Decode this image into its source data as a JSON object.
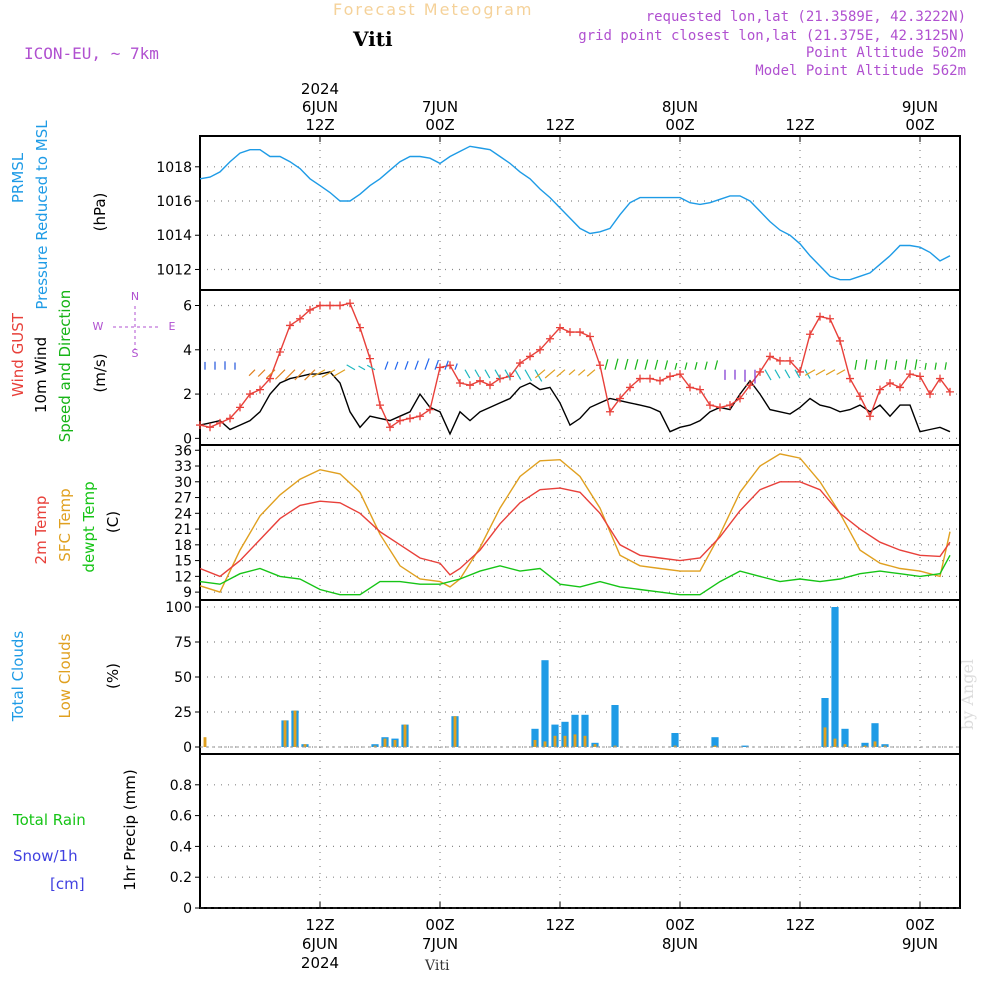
{
  "header": {
    "title": "Forecast Meteogram",
    "station": "Viti",
    "model": "ICON-EU, ~ 7km",
    "requested": "requested lon,lat (21.3589E, 42.3222N)",
    "gridpoint": "grid point closest lon,lat (21.375E, 42.3125N)",
    "point_alt": "Point Altitude 502m",
    "model_alt": "Model Point Altitude 562m",
    "footer_station": "Viti",
    "watermark": "by Angel"
  },
  "time_axis": {
    "top_labels": [
      {
        "t": 12,
        "lines": [
          "2024",
          "6JUN",
          "12Z"
        ]
      },
      {
        "t": 24,
        "lines": [
          "7JUN",
          "00Z"
        ]
      },
      {
        "t": 36,
        "lines": [
          "12Z"
        ]
      },
      {
        "t": 48,
        "lines": [
          "8JUN",
          "00Z"
        ]
      },
      {
        "t": 60,
        "lines": [
          "12Z"
        ]
      },
      {
        "t": 72,
        "lines": [
          "9JUN",
          "00Z"
        ]
      }
    ],
    "bottom_labels": [
      {
        "t": 12,
        "lines": [
          "12Z",
          "6JUN",
          "2024"
        ]
      },
      {
        "t": 24,
        "lines": [
          "00Z",
          "7JUN"
        ]
      },
      {
        "t": 36,
        "lines": [
          "12Z"
        ]
      },
      {
        "t": 48,
        "lines": [
          "00Z",
          "8JUN"
        ]
      },
      {
        "t": 60,
        "lines": [
          "12Z"
        ]
      },
      {
        "t": 72,
        "lines": [
          "00Z",
          "9JUN"
        ]
      }
    ]
  },
  "colors": {
    "pressure": "#1e9be6",
    "gust": "#e8403a",
    "wind": "#000000",
    "direction": "#16b416",
    "temp": "#e8403a",
    "sfc": "#e0a020",
    "dewpt": "#16c416",
    "total_clouds": "#1e9be6",
    "low_clouds": "#e0a020",
    "rain": "#16c416",
    "snow": "#4040e0",
    "compass": "#b050d0"
  },
  "chart_data": [
    {
      "type": "line",
      "name": "pressure",
      "labels": [
        "PRMSL",
        "Pressure Reduced to MSL"
      ],
      "unit": "(hPa)",
      "yticks": [
        1012,
        1014,
        1016,
        1018
      ],
      "ylim": [
        1010.8,
        1019.8
      ],
      "grid": true,
      "series": [
        {
          "name": "PRMSL",
          "x": [
            0,
            1,
            2,
            3,
            4,
            5,
            6,
            7,
            8,
            9,
            10,
            11,
            12,
            13,
            14,
            15,
            16,
            17,
            18,
            19,
            20,
            21,
            22,
            23,
            24,
            25,
            26,
            27,
            28,
            29,
            30,
            31,
            32,
            33,
            34,
            35,
            36,
            37,
            38,
            39,
            40,
            41,
            42,
            43,
            44,
            45,
            46,
            47,
            48,
            49,
            50,
            51,
            52,
            53,
            54,
            55,
            56,
            57,
            58,
            59,
            60,
            61,
            62,
            63,
            64,
            65,
            66,
            67,
            68,
            69,
            70,
            71,
            72,
            73,
            74,
            75
          ],
          "y": [
            1017.3,
            1017.4,
            1017.7,
            1018.3,
            1018.8,
            1019.0,
            1019.0,
            1018.6,
            1018.6,
            1018.3,
            1017.9,
            1017.3,
            1016.9,
            1016.5,
            1016.0,
            1016.0,
            1016.4,
            1016.9,
            1017.3,
            1017.8,
            1018.3,
            1018.6,
            1018.6,
            1018.5,
            1018.2,
            1018.6,
            1018.9,
            1019.2,
            1019.1,
            1019.0,
            1018.6,
            1018.2,
            1017.7,
            1017.3,
            1016.7,
            1016.2,
            1015.6,
            1015.0,
            1014.4,
            1014.1,
            1014.2,
            1014.4,
            1015.2,
            1015.9,
            1016.2,
            1016.2,
            1016.2,
            1016.2,
            1016.2,
            1015.9,
            1015.8,
            1015.9,
            1016.1,
            1016.3,
            1016.3,
            1016.0,
            1015.4,
            1014.8,
            1014.3,
            1014.0,
            1013.5,
            1012.8,
            1012.2,
            1011.6,
            1011.4,
            1011.4,
            1011.6,
            1011.8,
            1012.3,
            1012.8,
            1013.4,
            1013.4,
            1013.3,
            1013.0,
            1012.5,
            1012.8
          ]
        }
      ]
    },
    {
      "type": "line",
      "name": "wind",
      "labels": [
        "Wind GUST",
        "10m Wind",
        "Speed and Direction"
      ],
      "unit": "(m/s)",
      "compass": [
        "N",
        "W",
        "E",
        "S"
      ],
      "yticks": [
        0,
        2,
        4,
        6
      ],
      "ylim": [
        -0.3,
        6.7
      ],
      "grid": true,
      "series": [
        {
          "name": "Wind GUST",
          "x": [
            0,
            1,
            2,
            3,
            4,
            5,
            6,
            7,
            8,
            9,
            10,
            11,
            12,
            13,
            14,
            15,
            16,
            17,
            18,
            19,
            20,
            21,
            22,
            23,
            24,
            25,
            26,
            27,
            28,
            29,
            30,
            31,
            32,
            33,
            34,
            35,
            36,
            37,
            38,
            39,
            40,
            41,
            42,
            43,
            44,
            45,
            46,
            47,
            48,
            49,
            50,
            51,
            52,
            53,
            54,
            55,
            56,
            57,
            58,
            59,
            60,
            61,
            62,
            63,
            64,
            65,
            66,
            67,
            68,
            69,
            70,
            71,
            72,
            73,
            74,
            75
          ],
          "y": [
            0.6,
            0.5,
            0.7,
            0.9,
            1.4,
            2.0,
            2.2,
            2.7,
            3.9,
            5.1,
            5.4,
            5.8,
            6.0,
            6.0,
            6.0,
            6.1,
            5.0,
            3.6,
            1.5,
            0.5,
            0.8,
            0.9,
            1.0,
            1.3,
            3.2,
            3.3,
            2.5,
            2.4,
            2.6,
            2.4,
            2.7,
            2.8,
            3.4,
            3.7,
            4.0,
            4.5,
            5.0,
            4.8,
            4.8,
            4.6,
            3.3,
            1.2,
            1.8,
            2.3,
            2.7,
            2.7,
            2.6,
            2.8,
            2.9,
            2.3,
            2.2,
            1.5,
            1.4,
            1.5,
            1.8,
            2.4,
            3.0,
            3.7,
            3.5,
            3.5,
            3.0,
            4.7,
            5.5,
            5.4,
            4.4,
            2.7,
            1.9,
            1.0,
            2.2,
            2.5,
            2.3,
            2.9,
            2.8,
            2.0,
            2.7,
            2.1
          ]
        },
        {
          "name": "10m Wind",
          "x": [
            0,
            1,
            2,
            3,
            4,
            5,
            6,
            7,
            8,
            9,
            10,
            11,
            12,
            13,
            14,
            15,
            16,
            17,
            18,
            19,
            20,
            21,
            22,
            23,
            24,
            25,
            26,
            27,
            28,
            29,
            30,
            31,
            32,
            33,
            34,
            35,
            36,
            37,
            38,
            39,
            40,
            41,
            42,
            43,
            44,
            45,
            46,
            47,
            48,
            49,
            50,
            51,
            52,
            53,
            54,
            55,
            56,
            57,
            58,
            59,
            60,
            61,
            62,
            63,
            64,
            65,
            66,
            67,
            68,
            69,
            70,
            71,
            72,
            73,
            74,
            75
          ],
          "y": [
            0.6,
            0.7,
            0.8,
            0.4,
            0.6,
            0.8,
            1.2,
            2.0,
            2.5,
            2.7,
            2.8,
            2.9,
            2.9,
            3.0,
            2.5,
            1.2,
            0.5,
            1.0,
            0.9,
            0.8,
            1.0,
            1.2,
            2.0,
            1.4,
            1.2,
            0.2,
            1.2,
            0.8,
            1.2,
            1.4,
            1.6,
            1.8,
            2.3,
            2.5,
            2.2,
            2.3,
            1.6,
            0.6,
            0.9,
            1.4,
            1.6,
            1.8,
            1.7,
            1.6,
            1.5,
            1.4,
            1.2,
            0.3,
            0.5,
            0.6,
            0.8,
            1.2,
            1.4,
            1.3,
            2.0,
            2.6,
            2.0,
            1.3,
            1.2,
            1.1,
            1.4,
            1.8,
            1.5,
            1.4,
            1.2,
            1.3,
            1.5,
            1.2,
            1.5,
            1.0,
            1.5,
            1.5,
            0.3,
            0.4,
            0.5,
            0.3
          ]
        }
      ]
    },
    {
      "type": "line",
      "name": "temperature",
      "labels": [
        "2m Temp",
        "SFC Temp",
        "dewpt Temp"
      ],
      "unit": "(C)",
      "yticks": [
        9,
        12,
        15,
        18,
        21,
        24,
        27,
        30,
        33,
        36
      ],
      "ylim": [
        7.5,
        37
      ],
      "grid": true,
      "series": [
        {
          "name": "2m Temp",
          "x": [
            0,
            2,
            4,
            6,
            8,
            10,
            12,
            14,
            16,
            18,
            20,
            22,
            24,
            25,
            26,
            28,
            30,
            32,
            34,
            36,
            38,
            40,
            42,
            44,
            46,
            48,
            50,
            52,
            54,
            56,
            58,
            60,
            62,
            64,
            66,
            68,
            70,
            72,
            74,
            75
          ],
          "y": [
            13.5,
            12.0,
            15.0,
            19.0,
            23.0,
            25.5,
            26.3,
            26.0,
            24.0,
            20.5,
            18.0,
            15.5,
            14.5,
            12.3,
            13.5,
            17.0,
            22.0,
            26.0,
            28.5,
            28.8,
            28.0,
            24.0,
            18.0,
            16.0,
            15.5,
            15.0,
            15.5,
            19.5,
            24.5,
            28.5,
            30.0,
            30.0,
            28.5,
            24.0,
            21.0,
            18.5,
            17.0,
            16.0,
            15.8,
            18.5
          ]
        },
        {
          "name": "SFC Temp",
          "x": [
            0,
            2,
            4,
            6,
            8,
            10,
            12,
            14,
            16,
            18,
            20,
            22,
            24,
            25,
            26,
            28,
            30,
            32,
            34,
            36,
            38,
            40,
            42,
            44,
            46,
            48,
            50,
            52,
            54,
            56,
            58,
            60,
            62,
            64,
            66,
            68,
            70,
            72,
            74,
            75
          ],
          "y": [
            10.2,
            9.0,
            17.0,
            23.5,
            27.5,
            30.5,
            32.3,
            31.5,
            28.0,
            20.0,
            14.0,
            11.5,
            11.0,
            10.0,
            11.5,
            17.5,
            25.0,
            31.0,
            34.0,
            34.2,
            31.0,
            25.0,
            16.0,
            14.0,
            13.5,
            13.0,
            13.0,
            20.0,
            28.0,
            33.0,
            35.3,
            34.5,
            30.0,
            24.0,
            17.0,
            14.5,
            13.5,
            13.0,
            12.0,
            20.5
          ]
        },
        {
          "name": "dewpt Temp",
          "x": [
            0,
            2,
            4,
            6,
            8,
            10,
            12,
            14,
            16,
            18,
            20,
            22,
            24,
            26,
            28,
            30,
            32,
            34,
            36,
            38,
            40,
            42,
            44,
            46,
            48,
            50,
            52,
            54,
            56,
            58,
            60,
            62,
            64,
            66,
            68,
            70,
            72,
            74,
            75
          ],
          "y": [
            11.0,
            10.5,
            12.5,
            13.5,
            12.0,
            11.5,
            9.5,
            8.5,
            8.5,
            11.0,
            11.0,
            10.5,
            10.5,
            11.5,
            13.0,
            14.0,
            13.0,
            13.5,
            10.5,
            10.0,
            11.0,
            10.0,
            9.5,
            9.0,
            8.5,
            8.5,
            11.0,
            13.0,
            12.0,
            11.0,
            11.5,
            11.0,
            11.5,
            12.5,
            13.0,
            12.5,
            12.0,
            12.5,
            16.0
          ]
        }
      ]
    },
    {
      "type": "bar",
      "name": "clouds",
      "labels": [
        "Total Clouds",
        "Low Clouds"
      ],
      "unit": "(%)",
      "yticks": [
        0,
        25,
        50,
        75,
        100
      ],
      "ylim": [
        -5,
        105
      ],
      "grid": true,
      "series": [
        {
          "name": "Total Clouds",
          "x": [
            0,
            8,
            9,
            10,
            17,
            18,
            19,
            20,
            25,
            33,
            34,
            35,
            36,
            37,
            38,
            39,
            41,
            47,
            51,
            54,
            62,
            63,
            64,
            66,
            67,
            68
          ],
          "y": [
            0,
            19,
            26,
            2,
            2,
            7,
            6,
            16,
            22,
            13,
            62,
            16,
            18,
            23,
            23,
            3,
            30,
            10,
            7,
            1,
            35,
            100,
            13,
            3,
            17,
            2
          ]
        },
        {
          "name": "Low Clouds",
          "x": [
            0,
            8,
            9,
            10,
            17,
            18,
            19,
            20,
            25,
            33,
            34,
            35,
            36,
            37,
            38,
            39,
            41,
            47,
            51,
            54,
            62,
            63,
            64,
            66,
            67,
            68
          ],
          "y": [
            7,
            19,
            26,
            2,
            1,
            6,
            5,
            16,
            22,
            5,
            4,
            8,
            8,
            9,
            8,
            2,
            1,
            1,
            1,
            0,
            14,
            6,
            2,
            1,
            4,
            1
          ]
        }
      ]
    },
    {
      "type": "line",
      "name": "precipitation",
      "labels": [
        "Total Rain",
        "Snow/1h",
        "[cm]"
      ],
      "ylabel": "1hr Precip (mm)",
      "yticks": [
        0,
        0.2,
        0.4,
        0.6,
        0.8
      ],
      "yticklabels": [
        "0",
        "0.2",
        "0.4",
        "0.6",
        "0.8"
      ],
      "ylim": [
        0,
        1.0
      ],
      "grid": true,
      "series": [
        {
          "name": "Total Rain",
          "x": [
            0,
            75
          ],
          "y": [
            0,
            0
          ]
        }
      ]
    }
  ]
}
